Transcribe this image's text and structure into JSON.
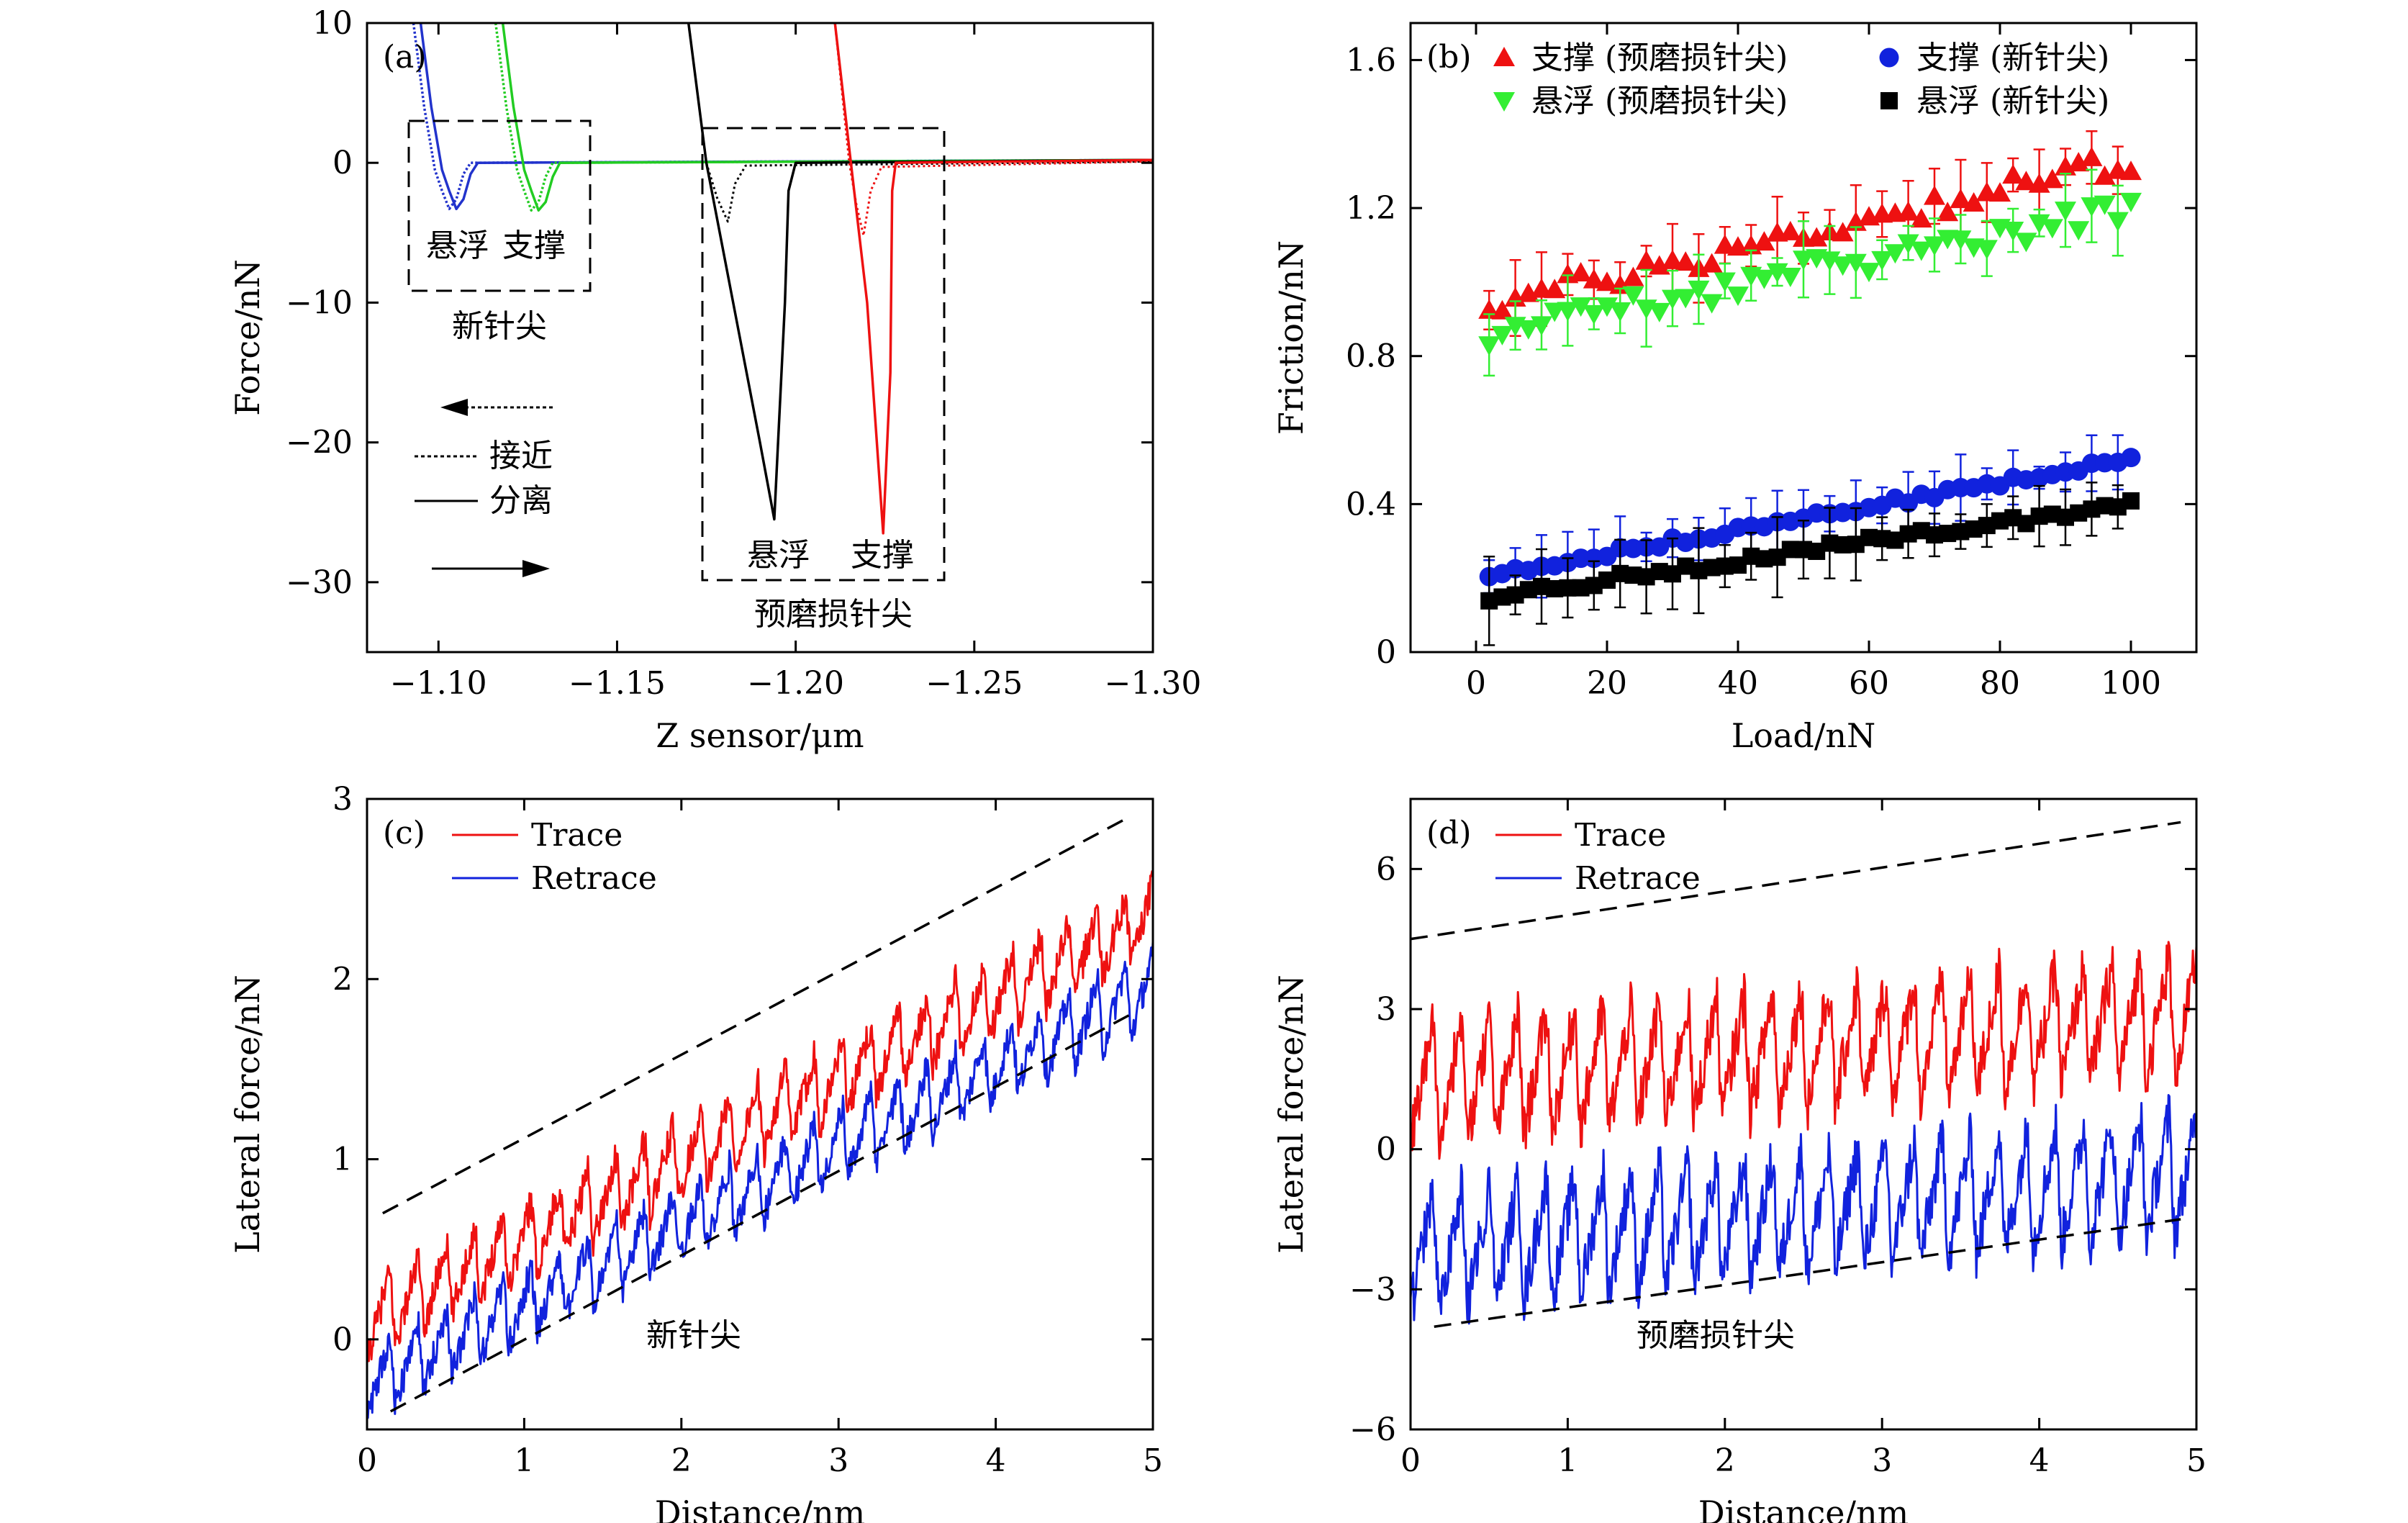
{
  "chart_data": [
    {
      "panel": "a",
      "panel_label": "(a)",
      "type": "line",
      "xlabel": "Z sensor/μm",
      "ylabel": "Force/nN",
      "xlim": [
        -1.08,
        -1.3
      ],
      "ylim": [
        -35,
        10
      ],
      "xticks": [
        -1.1,
        -1.15,
        -1.2,
        -1.25,
        -1.3
      ],
      "xtick_labels": [
        "−1.10",
        "−1.15",
        "−1.20",
        "−1.25",
        "−1.30"
      ],
      "yticks": [
        10,
        0,
        -10,
        -20,
        -30
      ],
      "ytick_labels": [
        "10",
        "0",
        "−10",
        "−20",
        "−30"
      ],
      "grid": false,
      "colors": {
        "suspended_new": "#2233cc",
        "supported_new": "#22cc22",
        "suspended_worn": "#000000",
        "supported_worn": "#ee1111"
      },
      "series": [
        {
          "key": "suspended_new",
          "style": "both",
          "points": [
            [
              -1.095,
              10
            ],
            [
              -1.098,
              4
            ],
            [
              -1.101,
              -0.5
            ],
            [
              -1.103,
              -2
            ],
            [
              -1.105,
              -3.3
            ],
            [
              -1.107,
              -2.6
            ],
            [
              -1.109,
              -0.8
            ],
            [
              -1.111,
              0
            ],
            [
              -1.3,
              0.2
            ]
          ]
        },
        {
          "key": "supported_new",
          "style": "both",
          "points": [
            [
              -1.118,
              10
            ],
            [
              -1.121,
              4
            ],
            [
              -1.124,
              -0.5
            ],
            [
              -1.126,
              -2
            ],
            [
              -1.128,
              -3.4
            ],
            [
              -1.13,
              -2.8
            ],
            [
              -1.132,
              -1
            ],
            [
              -1.134,
              0
            ],
            [
              -1.3,
              0.2
            ]
          ]
        },
        {
          "key": "suspended_worn",
          "style": "solid",
          "points": [
            [
              -1.17,
              10
            ],
            [
              -1.175,
              0
            ],
            [
              -1.181,
              -8
            ],
            [
              -1.19,
              -20
            ],
            [
              -1.194,
              -25.5
            ],
            [
              -1.197,
              -10
            ],
            [
              -1.198,
              -2
            ],
            [
              -1.2,
              0
            ],
            [
              -1.3,
              0.2
            ]
          ]
        },
        {
          "key": "suspended_worn_approach",
          "color_key": "suspended_worn",
          "style": "dotted",
          "points": [
            [
              -1.17,
              10
            ],
            [
              -1.175,
              0
            ],
            [
              -1.178,
              -2.5
            ],
            [
              -1.181,
              -4.2
            ],
            [
              -1.183,
              -1.5
            ],
            [
              -1.186,
              -0.2
            ],
            [
              -1.3,
              0.1
            ]
          ]
        },
        {
          "key": "supported_worn",
          "style": "solid",
          "points": [
            [
              -1.211,
              10
            ],
            [
              -1.215,
              1
            ],
            [
              -1.22,
              -10
            ],
            [
              -1.2245,
              -26.5
            ],
            [
              -1.2265,
              -15
            ],
            [
              -1.227,
              -2
            ],
            [
              -1.228,
              0
            ],
            [
              -1.3,
              0.2
            ]
          ]
        },
        {
          "key": "supported_worn_approach",
          "color_key": "supported_worn",
          "style": "dotted",
          "points": [
            [
              -1.211,
              10
            ],
            [
              -1.215,
              0
            ],
            [
              -1.217,
              -3
            ],
            [
              -1.219,
              -5.2
            ],
            [
              -1.221,
              -2
            ],
            [
              -1.224,
              -0.3
            ],
            [
              -1.3,
              0.1
            ]
          ]
        }
      ],
      "annotations": {
        "new_suspended": "悬浮",
        "new_supported": "支撑",
        "new_tip": "新针尖",
        "worn_suspended": "悬浮",
        "worn_supported": "支撑",
        "worn_tip": "预磨损针尖",
        "approach": "接近",
        "separate": "分离"
      }
    },
    {
      "panel": "b",
      "panel_label": "(b)",
      "type": "scatter",
      "xlabel": "Load/nN",
      "ylabel": "Friction/nN",
      "xlim": [
        -10,
        110
      ],
      "ylim": [
        0,
        1.7
      ],
      "xticks": [
        0,
        20,
        40,
        60,
        80,
        100
      ],
      "xtick_labels": [
        "0",
        "20",
        "40",
        "60",
        "80",
        "100"
      ],
      "yticks": [
        0,
        0.4,
        0.8,
        1.2,
        1.6
      ],
      "ytick_labels": [
        "0",
        "0.4",
        "0.8",
        "1.2",
        "1.6"
      ],
      "grid": false,
      "legend_position": "top",
      "series": [
        {
          "name": "支撑 (预磨损针尖)",
          "marker": "triangle-up",
          "color": "#ee1111",
          "x_start": 2,
          "x_step": 2,
          "count": 50,
          "y_start": 0.94,
          "y_end": 1.33,
          "noise": 0.035,
          "err": 0.08
        },
        {
          "name": "悬浮 (预磨损针尖)",
          "marker": "triangle-down",
          "color": "#33ee33",
          "x_start": 2,
          "x_step": 2,
          "count": 50,
          "y_start": 0.86,
          "y_end": 1.2,
          "noise": 0.035,
          "err": 0.07
        },
        {
          "name": "支撑 (新针尖)",
          "marker": "circle",
          "color": "#1122dd",
          "x_start": 2,
          "x_step": 2,
          "count": 50,
          "y_start": 0.21,
          "y_end": 0.52,
          "noise": 0.01,
          "err": 0.06
        },
        {
          "name": "悬浮 (新针尖)",
          "marker": "square",
          "color": "#000000",
          "x_start": 2,
          "x_step": 2,
          "count": 50,
          "y_start": 0.15,
          "y_end": 0.4,
          "noise": 0.012,
          "err": 0.08
        }
      ]
    },
    {
      "panel": "c",
      "panel_label": "(c)",
      "type": "line",
      "xlabel": "Distance/nm",
      "ylabel": "Lateral force/nN",
      "xlim": [
        0,
        5
      ],
      "ylim": [
        -0.5,
        3
      ],
      "xticks": [
        0,
        1,
        2,
        3,
        4,
        5
      ],
      "xtick_labels": [
        "0",
        "1",
        "2",
        "3",
        "4",
        "5"
      ],
      "yticks": [
        0,
        1,
        2,
        3
      ],
      "ytick_labels": [
        "0",
        "1",
        "2",
        "3"
      ],
      "grid": false,
      "legend_position": "top-left",
      "annotation": "新针尖",
      "series": [
        {
          "name": "Trace",
          "color": "#ee1111",
          "base_start": 0.1,
          "base_end": 2.35,
          "amplitude": 0.42,
          "period": 0.18
        },
        {
          "name": "Retrace",
          "color": "#1122dd",
          "base_start": -0.25,
          "base_end": 1.95,
          "amplitude": 0.4,
          "period": 0.18
        }
      ],
      "envelope": [
        {
          "x": [
            0.1,
            4.85
          ],
          "y": [
            0.7,
            2.9
          ]
        },
        {
          "x": [
            0.15,
            4.85
          ],
          "y": [
            -0.4,
            1.8
          ]
        }
      ]
    },
    {
      "panel": "d",
      "panel_label": "(d)",
      "type": "line",
      "xlabel": "Distance/nm",
      "ylabel": "Lateral force/nN",
      "xlim": [
        0,
        5
      ],
      "ylim": [
        -6,
        7.5
      ],
      "xticks": [
        0,
        1,
        2,
        3,
        4,
        5
      ],
      "xtick_labels": [
        "0",
        "1",
        "2",
        "3",
        "4",
        "5"
      ],
      "yticks": [
        -6,
        -3,
        0,
        3,
        6
      ],
      "ytick_labels": [
        "−6",
        "−3",
        "0",
        "3",
        "6"
      ],
      "grid": false,
      "legend_position": "top-left",
      "annotation": "预磨损针尖",
      "series": [
        {
          "name": "Trace",
          "color": "#ee1111",
          "base_start": 1.4,
          "base_end": 2.9,
          "amplitude": 2.6,
          "period": 0.18
        },
        {
          "name": "Retrace",
          "color": "#1122dd",
          "base_start": -2.2,
          "base_end": -0.5,
          "amplitude": 2.6,
          "period": 0.18
        }
      ],
      "envelope": [
        {
          "x": [
            0,
            4.9
          ],
          "y": [
            4.5,
            7.0
          ]
        },
        {
          "x": [
            0.15,
            4.9
          ],
          "y": [
            -3.8,
            -1.5
          ]
        }
      ]
    }
  ]
}
